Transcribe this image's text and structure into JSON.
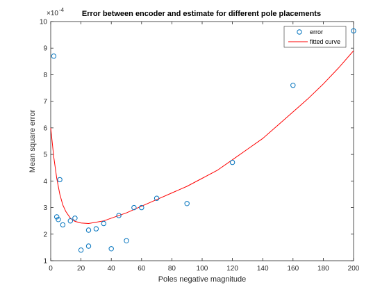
{
  "chart_data": {
    "type": "scatter",
    "title": "Error between encoder and estimate for different pole placements",
    "xlabel": "Poles negative magnitude",
    "ylabel": "Mean square error",
    "y_exponent_label": "×10",
    "y_exponent_value": "-4",
    "xlim": [
      0,
      200
    ],
    "ylim": [
      1,
      10
    ],
    "xticks": [
      "0",
      "20",
      "40",
      "60",
      "80",
      "100",
      "120",
      "140",
      "160",
      "180",
      "200"
    ],
    "yticks": [
      "1",
      "2",
      "3",
      "4",
      "5",
      "6",
      "7",
      "8",
      "9",
      "10"
    ],
    "grid": false,
    "legend_position": "top-right",
    "series": [
      {
        "name": "error",
        "kind": "markers",
        "color": "#0072BD",
        "points": [
          [
            2,
            8.7
          ],
          [
            4,
            2.65
          ],
          [
            5,
            2.55
          ],
          [
            6,
            4.05
          ],
          [
            8,
            2.35
          ],
          [
            13,
            2.5
          ],
          [
            16,
            2.6
          ],
          [
            20,
            1.4
          ],
          [
            25,
            2.15
          ],
          [
            25,
            1.55
          ],
          [
            30,
            2.2
          ],
          [
            35,
            2.4
          ],
          [
            40,
            1.45
          ],
          [
            45,
            2.7
          ],
          [
            50,
            1.75
          ],
          [
            55,
            3.0
          ],
          [
            60,
            3.0
          ],
          [
            70,
            3.35
          ],
          [
            90,
            3.15
          ],
          [
            120,
            4.7
          ],
          [
            160,
            7.6
          ],
          [
            200,
            9.65
          ]
        ]
      },
      {
        "name": "fitted curve",
        "kind": "line",
        "color": "#FF0000",
        "points": [
          [
            0,
            6.0
          ],
          [
            2,
            4.9
          ],
          [
            4,
            4.1
          ],
          [
            6,
            3.5
          ],
          [
            8,
            3.1
          ],
          [
            10,
            2.85
          ],
          [
            13,
            2.6
          ],
          [
            16,
            2.48
          ],
          [
            20,
            2.42
          ],
          [
            25,
            2.4
          ],
          [
            30,
            2.45
          ],
          [
            35,
            2.5
          ],
          [
            40,
            2.6
          ],
          [
            50,
            2.8
          ],
          [
            60,
            3.05
          ],
          [
            70,
            3.3
          ],
          [
            80,
            3.55
          ],
          [
            90,
            3.8
          ],
          [
            100,
            4.1
          ],
          [
            110,
            4.4
          ],
          [
            120,
            4.8
          ],
          [
            130,
            5.2
          ],
          [
            140,
            5.6
          ],
          [
            150,
            6.1
          ],
          [
            160,
            6.6
          ],
          [
            170,
            7.1
          ],
          [
            180,
            7.65
          ],
          [
            190,
            8.25
          ],
          [
            200,
            8.9
          ]
        ]
      }
    ]
  }
}
